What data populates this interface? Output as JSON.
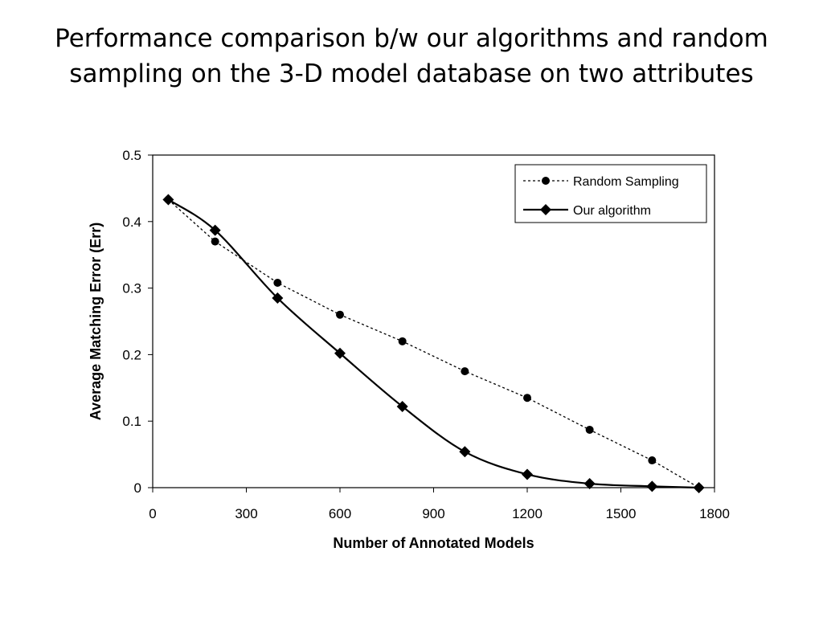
{
  "slide": {
    "title": "Performance comparison b/w our algorithms and random sampling on the 3-D model database on two attributes"
  },
  "chart_data": {
    "type": "line",
    "title": "",
    "xlabel": "Number of Annotated Models",
    "ylabel": "Average Matching Error (Err)",
    "xlim": [
      0,
      1800
    ],
    "ylim": [
      0,
      0.5
    ],
    "x_ticks": [
      0,
      300,
      600,
      900,
      1200,
      1500,
      1800
    ],
    "x_tick_labels": [
      "0",
      "300",
      "600",
      "900",
      "1200",
      "1500",
      "1800"
    ],
    "y_ticks": [
      0,
      0.1,
      0.2,
      0.3,
      0.4,
      0.5
    ],
    "y_tick_labels": [
      "0",
      "0.1",
      "0.2",
      "0.3",
      "0.4",
      "0.5"
    ],
    "grid": false,
    "legend_position": "top-right",
    "series": [
      {
        "name": "Random Sampling",
        "marker": "circle",
        "line_style": "dotted",
        "color": "#000000",
        "x": [
          50,
          200,
          400,
          600,
          800,
          1000,
          1200,
          1400,
          1600,
          1750
        ],
        "y": [
          0.433,
          0.37,
          0.308,
          0.26,
          0.22,
          0.175,
          0.135,
          0.087,
          0.041,
          0.0
        ]
      },
      {
        "name": "Our algorithm",
        "marker": "diamond",
        "line_style": "solid",
        "color": "#000000",
        "x": [
          50,
          200,
          400,
          600,
          800,
          1000,
          1200,
          1400,
          1600,
          1750
        ],
        "y": [
          0.433,
          0.387,
          0.285,
          0.202,
          0.122,
          0.054,
          0.02,
          0.006,
          0.002,
          0.0
        ]
      }
    ]
  }
}
